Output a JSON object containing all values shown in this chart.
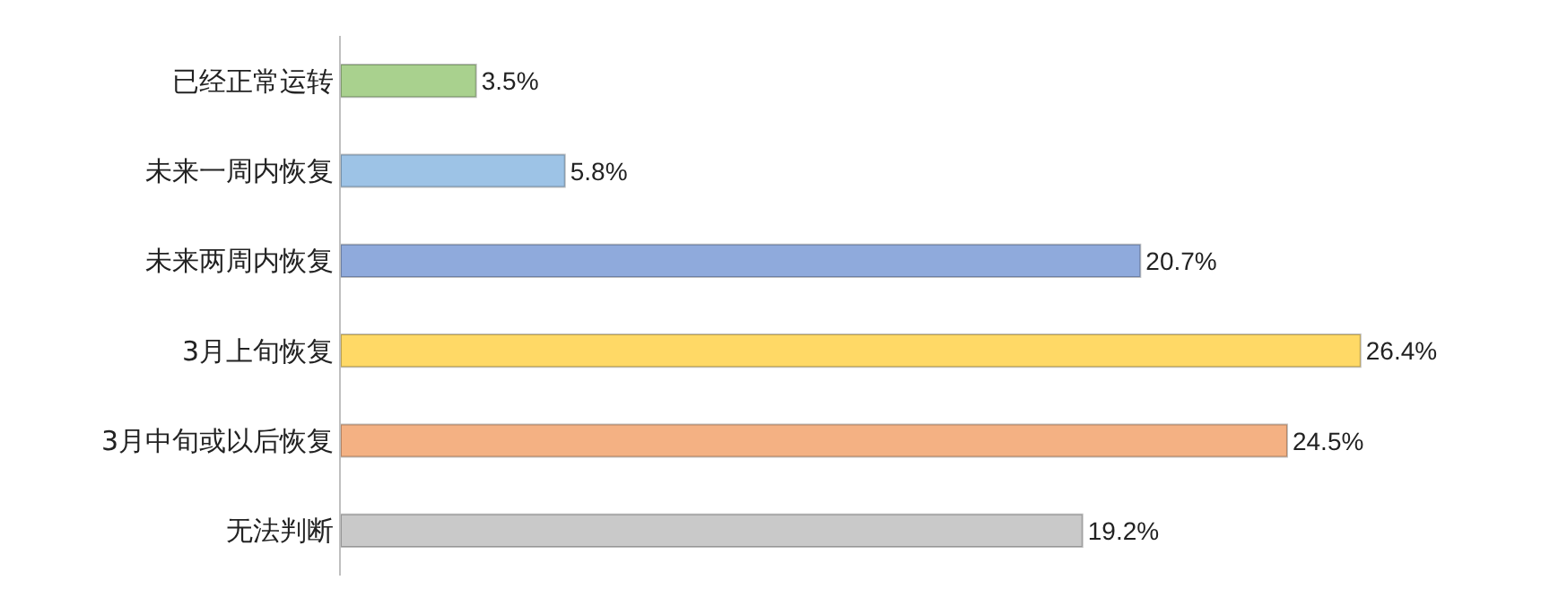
{
  "chart_data": {
    "type": "bar",
    "orientation": "horizontal",
    "categories": [
      "已经正常运转",
      "未来一周内恢复",
      "未来两周内恢复",
      "3月上旬恢复",
      "3月中旬或以后恢复",
      "无法判断"
    ],
    "values": [
      3.5,
      5.8,
      20.7,
      26.4,
      24.5,
      19.2
    ],
    "colors": [
      "#a9d18e",
      "#9dc3e6",
      "#8faadc",
      "#ffd966",
      "#f4b183",
      "#c9c9c9"
    ],
    "value_labels": [
      "3.5%",
      "5.8%",
      "20.7%",
      "26.4%",
      "24.5%",
      "19.2%"
    ]
  }
}
